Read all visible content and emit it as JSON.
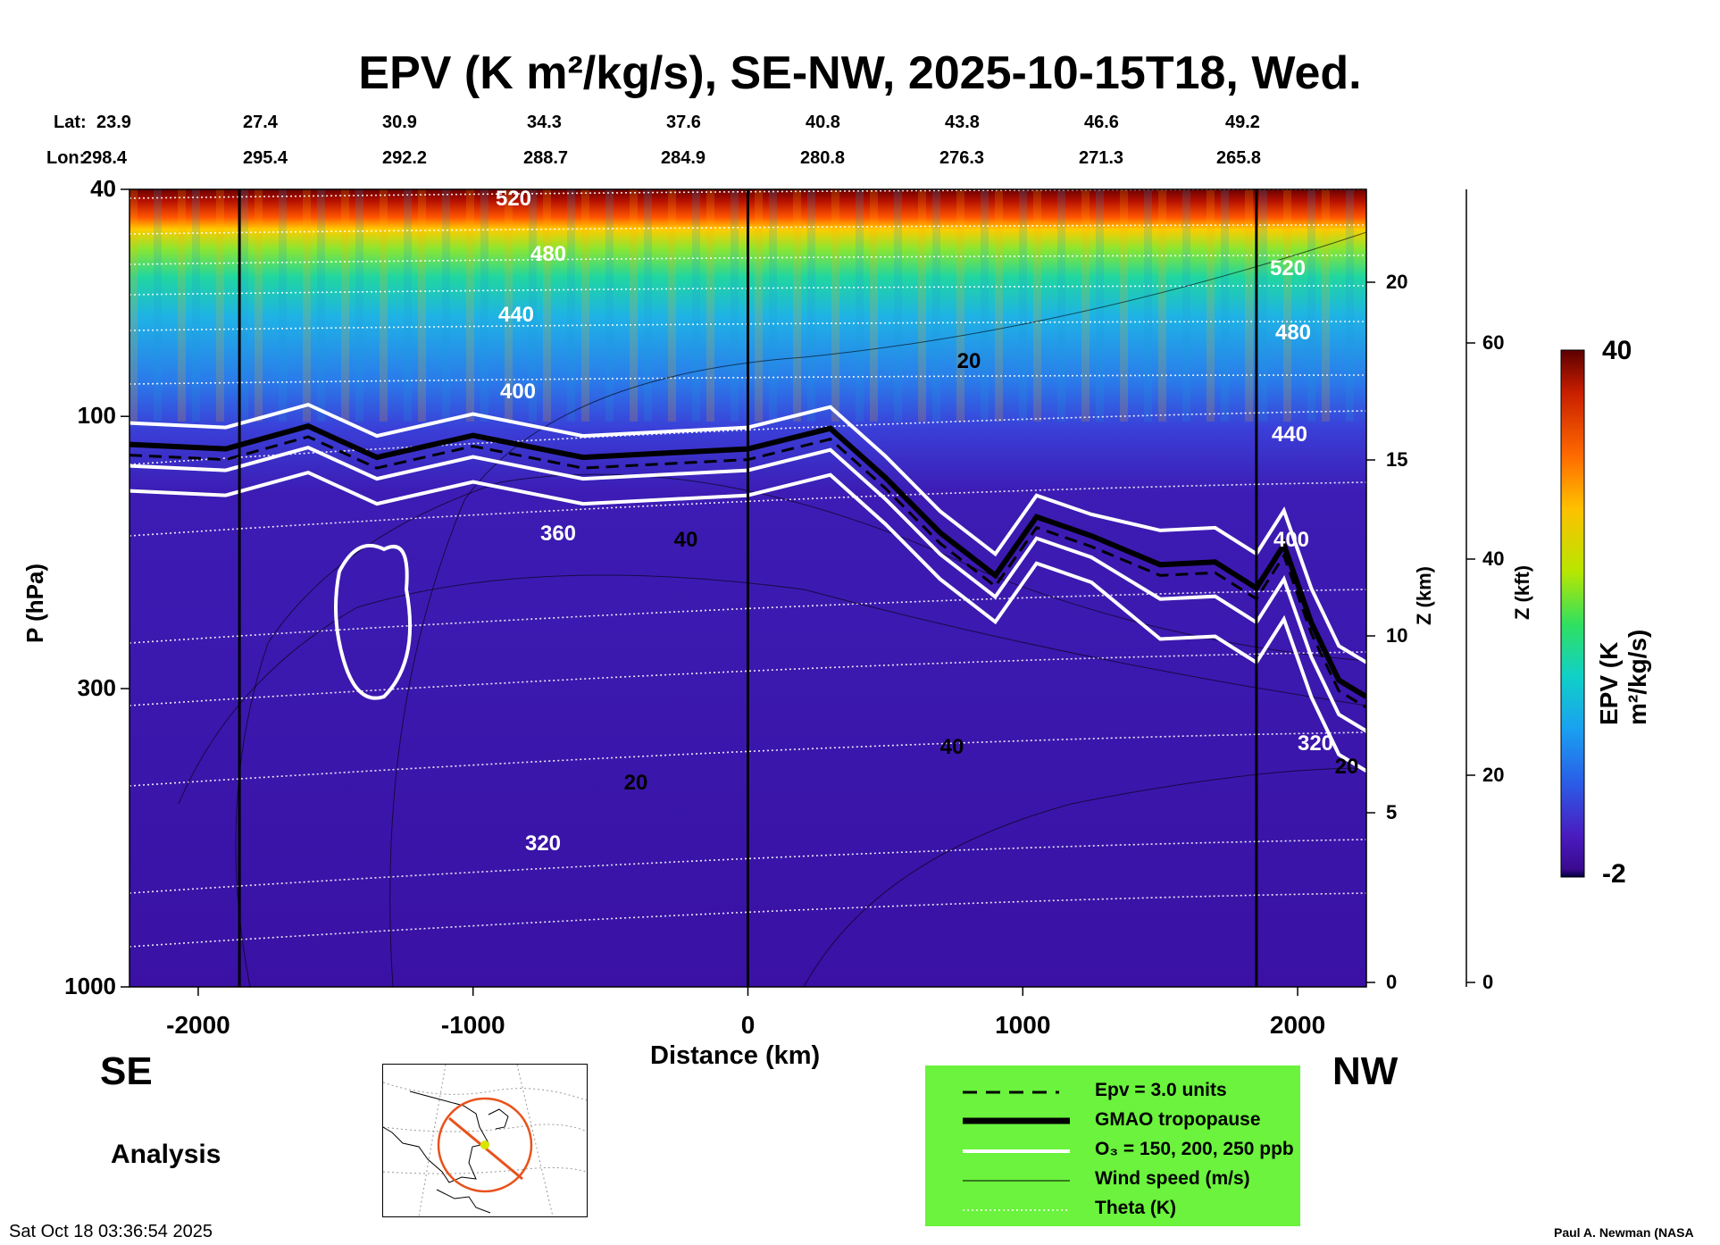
{
  "title": "EPV (K m²/kg/s), SE-NW, 2025-10-15T18, Wed.",
  "header_rows": {
    "lat_label": "Lat:",
    "lon_label": "Lon:",
    "lat_values": [
      "23.9",
      "27.4",
      "30.9",
      "34.3",
      "37.6",
      "40.8",
      "43.8",
      "46.6",
      "49.2"
    ],
    "lon_values": [
      "298.4",
      "295.4",
      "292.2",
      "288.7",
      "284.9",
      "280.8",
      "276.3",
      "271.3",
      "265.8"
    ]
  },
  "chart_data": {
    "type": "heatmap",
    "title": "EPV (K m²/kg/s), SE-NW, 2025-10-15T18, Wed.",
    "xlabel": "Distance (km)",
    "ylabel": "P (hPa)",
    "xlim": [
      -2250,
      2250
    ],
    "ylim_pressure": [
      1000,
      40
    ],
    "y_scale": "log",
    "x_ticks": [
      "-2000",
      "-1000",
      "0",
      "1000",
      "2000"
    ],
    "y_ticks": [
      "40",
      "100",
      "300",
      "1000"
    ],
    "right_axis_z_km": {
      "label": "Z (km)",
      "ticks": [
        "0",
        "5",
        "10",
        "15",
        "20"
      ]
    },
    "right_axis_z_kft": {
      "label": "Z (kft)",
      "ticks": [
        "0",
        "20",
        "40",
        "60"
      ]
    },
    "colorbar": {
      "label": "EPV (K m²/kg/s)",
      "min": -2,
      "max": 40,
      "min_label": "-2",
      "max_label": "40"
    },
    "theta_contours_K": [
      "520",
      "480",
      "440",
      "400",
      "360",
      "320",
      "320"
    ],
    "wind_contours_ms": [
      "20",
      "40",
      "20",
      "20",
      "40",
      "20",
      "20"
    ],
    "tropopause_pressure_hPa": [
      {
        "x": -2250,
        "p": 112
      },
      {
        "x": -1900,
        "p": 114
      },
      {
        "x": -1600,
        "p": 104
      },
      {
        "x": -1350,
        "p": 118
      },
      {
        "x": -1000,
        "p": 108
      },
      {
        "x": -600,
        "p": 118
      },
      {
        "x": 0,
        "p": 114
      },
      {
        "x": 300,
        "p": 105
      },
      {
        "x": 500,
        "p": 128
      },
      {
        "x": 700,
        "p": 160
      },
      {
        "x": 900,
        "p": 190
      },
      {
        "x": 1050,
        "p": 150
      },
      {
        "x": 1250,
        "p": 162
      },
      {
        "x": 1500,
        "p": 182
      },
      {
        "x": 1700,
        "p": 180
      },
      {
        "x": 1850,
        "p": 200
      },
      {
        "x": 1950,
        "p": 168
      },
      {
        "x": 2050,
        "p": 230
      },
      {
        "x": 2150,
        "p": 290
      },
      {
        "x": 2250,
        "p": 310
      }
    ],
    "section_lines_km": [
      -1850,
      0,
      1850
    ],
    "legend": [
      {
        "label": "Epv = 3.0 units",
        "style": "dashed"
      },
      {
        "label": "GMAO tropopause",
        "style": "thick"
      },
      {
        "label": "O₃ = 150, 200, 250 ppb",
        "style": "white"
      },
      {
        "label": "Wind speed (m/s)",
        "style": "thin"
      },
      {
        "label": "Theta (K)",
        "style": "dotted"
      }
    ]
  },
  "labels": {
    "left_end": "SE",
    "right_end": "NW",
    "analysis": "Analysis",
    "timestamp": "Sat Oct 18 03:36:54 2025",
    "credit": "Paul A. Newman (NASA"
  },
  "colors": {
    "legend_bg": "#6bf33d",
    "low_epv": "#3a11a4",
    "high_epv": "#6b0000"
  }
}
